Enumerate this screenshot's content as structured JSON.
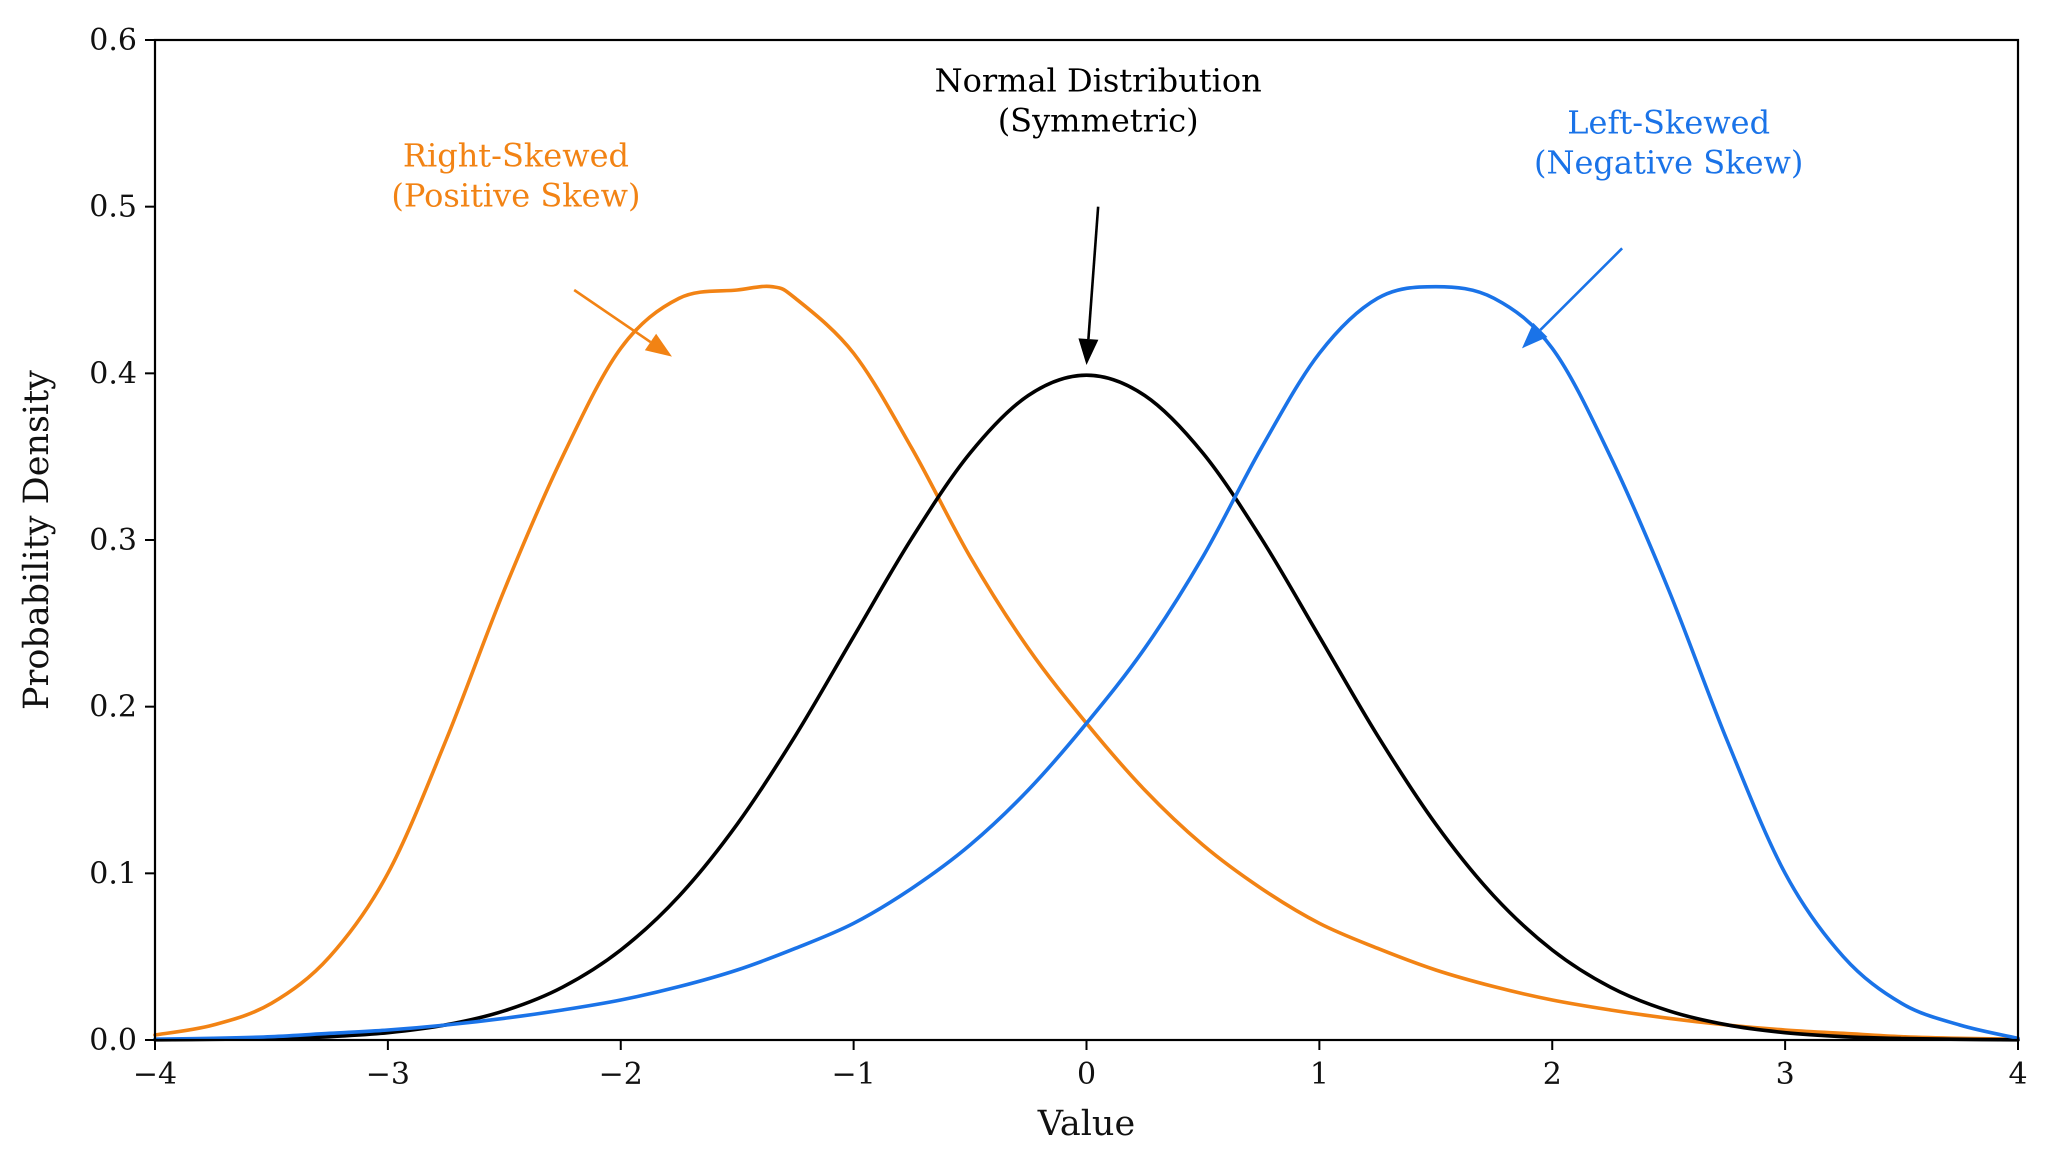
{
  "chart_data": {
    "type": "line",
    "title": "",
    "xlabel": "Value",
    "ylabel": "Probability Density",
    "xlim": [
      -4,
      4
    ],
    "ylim": [
      0,
      0.6
    ],
    "x_ticks": [
      -4,
      -3,
      -2,
      -1,
      0,
      1,
      2,
      3,
      4
    ],
    "x_tick_labels": [
      "−4",
      "−3",
      "−2",
      "−1",
      "0",
      "1",
      "2",
      "3",
      "4"
    ],
    "y_ticks": [
      0,
      0.1,
      0.2,
      0.3,
      0.4,
      0.5,
      0.6
    ],
    "y_tick_labels": [
      "0.0",
      "0.1",
      "0.2",
      "0.3",
      "0.4",
      "0.5",
      "0.6"
    ],
    "grid": false,
    "legend": "none",
    "series": [
      {
        "name": "Right-Skewed (Positive Skew)",
        "color": "#F28314",
        "x": [
          -4,
          -3.75,
          -3.5,
          -3.25,
          -3,
          -2.75,
          -2.5,
          -2.25,
          -2,
          -1.75,
          -1.5,
          -1.35,
          -1.25,
          -1,
          -0.75,
          -0.5,
          -0.25,
          0,
          0.25,
          0.5,
          0.75,
          1,
          1.25,
          1.5,
          1.75,
          2,
          2.25,
          2.5,
          2.75,
          3,
          3.25,
          3.5,
          3.75,
          4
        ],
        "y": [
          0.003,
          0.009,
          0.022,
          0.05,
          0.1,
          0.18,
          0.27,
          0.35,
          0.415,
          0.445,
          0.45,
          0.452,
          0.445,
          0.412,
          0.355,
          0.29,
          0.235,
          0.19,
          0.15,
          0.117,
          0.091,
          0.07,
          0.055,
          0.042,
          0.032,
          0.024,
          0.018,
          0.013,
          0.009,
          0.006,
          0.004,
          0.002,
          0.001,
          0.0005
        ]
      },
      {
        "name": "Normal Distribution (Symmetric)",
        "color": "#000000",
        "x": [
          -4,
          -3.75,
          -3.5,
          -3.25,
          -3,
          -2.75,
          -2.5,
          -2.25,
          -2,
          -1.75,
          -1.5,
          -1.25,
          -1,
          -0.75,
          -0.5,
          -0.25,
          0,
          0.25,
          0.5,
          0.75,
          1,
          1.25,
          1.5,
          1.75,
          2,
          2.25,
          2.5,
          2.75,
          3,
          3.25,
          3.5,
          3.75,
          4
        ],
        "y": [
          0.0001,
          0.0004,
          0.0009,
          0.002,
          0.0044,
          0.0091,
          0.0175,
          0.0317,
          0.054,
          0.0863,
          0.1295,
          0.1826,
          0.242,
          0.3011,
          0.3521,
          0.3867,
          0.3989,
          0.3867,
          0.3521,
          0.3011,
          0.242,
          0.1826,
          0.1295,
          0.0863,
          0.054,
          0.0317,
          0.0175,
          0.0091,
          0.0044,
          0.002,
          0.0009,
          0.0004,
          0.0001
        ]
      },
      {
        "name": "Left-Skewed (Negative Skew)",
        "color": "#1A73E8",
        "x": [
          -4,
          -3.75,
          -3.5,
          -3.25,
          -3,
          -2.75,
          -2.5,
          -2.25,
          -2,
          -1.75,
          -1.5,
          -1.25,
          -1,
          -0.75,
          -0.5,
          -0.25,
          0,
          0.25,
          0.5,
          0.75,
          1,
          1.25,
          1.5,
          1.75,
          2,
          2.25,
          2.5,
          2.75,
          3,
          3.25,
          3.5,
          3.75,
          4
        ],
        "y": [
          0.0005,
          0.001,
          0.002,
          0.004,
          0.006,
          0.009,
          0.013,
          0.018,
          0.024,
          0.032,
          0.042,
          0.055,
          0.07,
          0.091,
          0.117,
          0.15,
          0.19,
          0.235,
          0.29,
          0.355,
          0.412,
          0.445,
          0.452,
          0.445,
          0.415,
          0.35,
          0.27,
          0.18,
          0.1,
          0.05,
          0.022,
          0.009,
          0.001
        ]
      }
    ],
    "annotations": [
      {
        "lines": [
          "Right-Skewed",
          "(Positive Skew)"
        ],
        "color": "#F28314",
        "text_at": [
          -2.45,
          0.5
        ],
        "arrow_from": [
          -2.2,
          0.45
        ],
        "arrow_to": [
          -1.78,
          0.41
        ]
      },
      {
        "lines": [
          "Normal Distribution",
          "(Symmetric)"
        ],
        "color": "#000000",
        "text_at": [
          0.05,
          0.545
        ],
        "arrow_from": [
          0.05,
          0.5
        ],
        "arrow_to": [
          0.0,
          0.405
        ]
      },
      {
        "lines": [
          "Left-Skewed",
          "(Negative Skew)"
        ],
        "color": "#1A73E8",
        "text_at": [
          2.5,
          0.52
        ],
        "arrow_from": [
          2.3,
          0.475
        ],
        "arrow_to": [
          1.87,
          0.415
        ]
      }
    ]
  }
}
